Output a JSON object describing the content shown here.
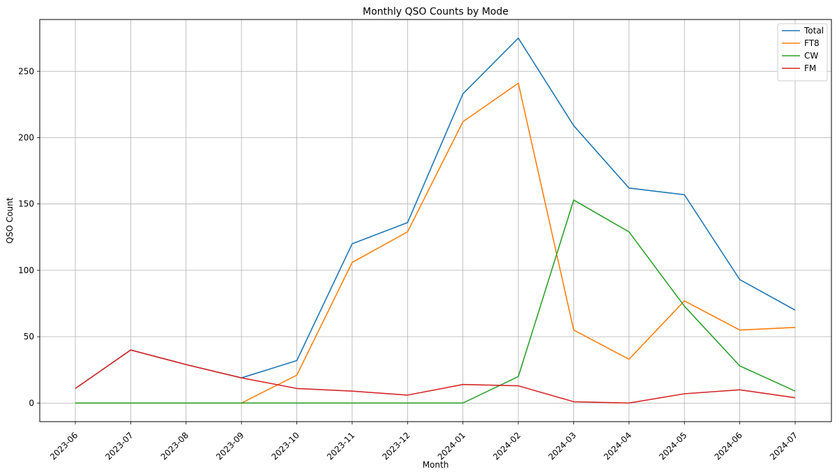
{
  "chart_data": {
    "type": "line",
    "title": "Monthly QSO Counts by Mode",
    "xlabel": "Month",
    "ylabel": "QSO Count",
    "categories": [
      "2023-06",
      "2023-07",
      "2023-08",
      "2023-09",
      "2023-10",
      "2023-11",
      "2023-12",
      "2024-01",
      "2024-02",
      "2024-03",
      "2024-04",
      "2024-05",
      "2024-06",
      "2024-07"
    ],
    "yticks": [
      0,
      50,
      100,
      150,
      200,
      250
    ],
    "ylim": [
      -14,
      289
    ],
    "grid": true,
    "legend_position": "top-right",
    "series": [
      {
        "name": "Total",
        "color": "#1f77b4",
        "values": [
          11,
          40,
          29,
          19,
          32,
          120,
          136,
          233,
          275,
          209,
          162,
          157,
          93,
          70
        ]
      },
      {
        "name": "FT8",
        "color": "#ff7f0e",
        "values": [
          0,
          0,
          0,
          0,
          21,
          106,
          129,
          212,
          241,
          55,
          33,
          77,
          55,
          57
        ]
      },
      {
        "name": "CW",
        "color": "#2ca02c",
        "values": [
          0,
          0,
          0,
          0,
          0,
          0,
          0,
          0,
          20,
          153,
          129,
          73,
          28,
          9
        ]
      },
      {
        "name": "FM",
        "color": "#d62728",
        "values": [
          11,
          40,
          29,
          19,
          11,
          9,
          6,
          14,
          13,
          1,
          0,
          7,
          10,
          4
        ]
      }
    ]
  }
}
